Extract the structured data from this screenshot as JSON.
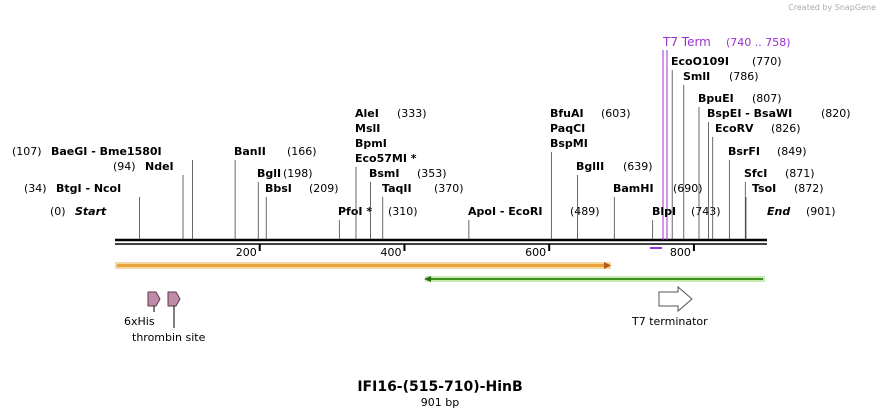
{
  "watermark": "Created by SnapGene",
  "title": "IFI16-(515-710)-HinB",
  "length": {
    "value": 901,
    "label": "901 bp"
  },
  "ruler_ticks": [
    200,
    400,
    600,
    800
  ],
  "ends": [
    {
      "name": "Start",
      "site": {
        "value": 0,
        "label": "(0)"
      }
    },
    {
      "name": "End",
      "site": {
        "value": 901,
        "label": "(901)"
      }
    }
  ],
  "sites": [
    {
      "names": [
        "BtgI - NcoI"
      ],
      "site": {
        "value": 34,
        "label": "(34)"
      }
    },
    {
      "names": [
        "NdeI"
      ],
      "site": {
        "value": 94,
        "label": "(94)"
      }
    },
    {
      "names": [
        "BaeGI - Bme1580I"
      ],
      "site": {
        "value": 107,
        "label": "(107)"
      }
    },
    {
      "names": [
        "BanII"
      ],
      "site": {
        "value": 166,
        "label": "(166)"
      }
    },
    {
      "names": [
        "BglI"
      ],
      "site": {
        "value": 198,
        "label": "(198)"
      }
    },
    {
      "names": [
        "BbsI"
      ],
      "site": {
        "value": 209,
        "label": "(209)"
      }
    },
    {
      "names": [
        "PfoI *"
      ],
      "site": {
        "value": 310,
        "label": "(310)"
      }
    },
    {
      "names": [
        "AleI",
        "MslI",
        "BpmI",
        "Eco57MI *"
      ],
      "site": {
        "value": 333,
        "label": "(333)"
      }
    },
    {
      "names": [
        "BsmI"
      ],
      "site": {
        "value": 353,
        "label": "(353)"
      }
    },
    {
      "names": [
        "TaqII"
      ],
      "site": {
        "value": 370,
        "label": "(370)"
      }
    },
    {
      "names": [
        "ApoI - EcoRI"
      ],
      "site": {
        "value": 489,
        "label": "(489)"
      }
    },
    {
      "names": [
        "BfuAI",
        "PaqCI",
        "BspMI"
      ],
      "site": {
        "value": 603,
        "label": "(603)"
      }
    },
    {
      "names": [
        "BglII"
      ],
      "site": {
        "value": 639,
        "label": "(639)"
      }
    },
    {
      "names": [
        "BamHI"
      ],
      "site": {
        "value": 690,
        "label": "(690)"
      }
    },
    {
      "names": [
        "BlpI"
      ],
      "site": {
        "value": 743,
        "label": "(743)"
      }
    },
    {
      "names": [
        "TsoI"
      ],
      "site": {
        "value": 872,
        "label": "(872)"
      }
    },
    {
      "names": [
        "SfcI"
      ],
      "site": {
        "value": 871,
        "label": "(871)"
      }
    },
    {
      "names": [
        "BsrFI"
      ],
      "site": {
        "value": 849,
        "label": "(849)"
      }
    },
    {
      "names": [
        "EcoRV"
      ],
      "site": {
        "value": 826,
        "label": "(826)"
      }
    },
    {
      "names": [
        "BspEI - BsaWI"
      ],
      "site": {
        "value": 820,
        "label": "(820)"
      }
    },
    {
      "names": [
        "BpuEI"
      ],
      "site": {
        "value": 807,
        "label": "(807)"
      }
    },
    {
      "names": [
        "SmlI"
      ],
      "site": {
        "value": 786,
        "label": "(786)"
      }
    },
    {
      "names": [
        "EcoO109I"
      ],
      "site": {
        "value": 770,
        "label": "(770)"
      }
    }
  ],
  "t7_term": {
    "name": "T7 Term",
    "range": "(740 .. 758)"
  },
  "features": [
    "6xHis",
    "thrombin site",
    "T7 terminator"
  ]
}
